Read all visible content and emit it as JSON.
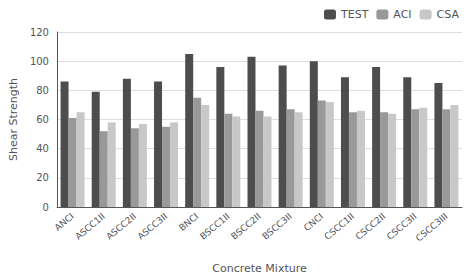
{
  "chart_data": {
    "type": "bar",
    "xlabel": "Concrete Mixture",
    "ylabel": "Shear Strength",
    "categories": [
      "ANCI",
      "ASCC1II",
      "ASCC2II",
      "ASCC3II",
      "BNCI",
      "BSCC1II",
      "BSCC2II",
      "BSCC3II",
      "CNCI",
      "CSCC1II",
      "CSCC2II",
      "CSCC3II",
      "CSCC3III"
    ],
    "series": [
      {
        "name": "TEST",
        "color": "#4d4d4d",
        "values": [
          86,
          79,
          88,
          86,
          105,
          96,
          103,
          97,
          100,
          89,
          96,
          89,
          85
        ]
      },
      {
        "name": "ACI",
        "color": "#999999",
        "values": [
          61,
          52,
          54,
          55,
          75,
          64,
          66,
          67,
          73,
          65,
          65,
          67,
          67
        ]
      },
      {
        "name": "CSA",
        "color": "#c8c8c8",
        "values": [
          65,
          58,
          57,
          58,
          70,
          62,
          62,
          65,
          72,
          66,
          64,
          68,
          70
        ]
      }
    ],
    "ylim": [
      0,
      120
    ],
    "yticks": [
      0,
      20,
      40,
      60,
      80,
      100,
      120
    ],
    "grid": true,
    "legend": "upper right"
  }
}
